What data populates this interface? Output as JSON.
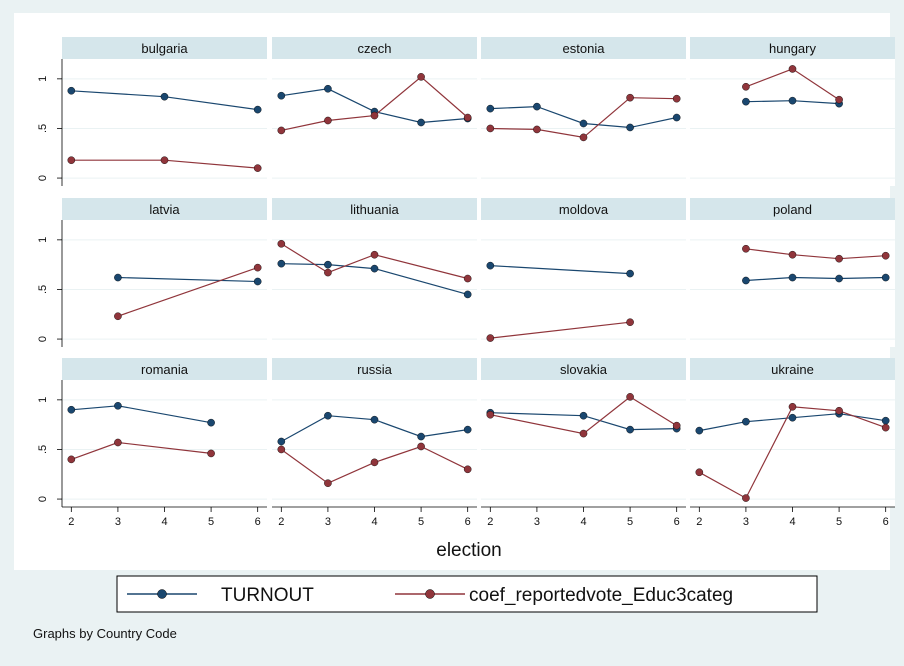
{
  "chart_data": {
    "type": "line",
    "xlabel": "election",
    "x_ticks": [
      2,
      3,
      4,
      5,
      6
    ],
    "y_ticks": [
      {
        "value": 0,
        "label": "0"
      },
      {
        "value": 0.5,
        "label": ".5"
      },
      {
        "value": 1,
        "label": "1"
      }
    ],
    "xlim": [
      1.8,
      6.2
    ],
    "ylim": [
      -0.08,
      1.2
    ],
    "grid": "horizontal",
    "legend_position": "bottom",
    "note": "Graphs by Country Code",
    "series_styles": [
      {
        "name": "TURNOUT",
        "color": "#1a476f"
      },
      {
        "name": "coef_reportedvote_Educ3categ",
        "color": "#90353b"
      }
    ],
    "panels": [
      {
        "title": "bulgaria",
        "series": [
          [
            [
              2,
              0.88
            ],
            [
              4,
              0.82
            ],
            [
              6,
              0.69
            ]
          ],
          [
            [
              2,
              0.18
            ],
            [
              4,
              0.18
            ],
            [
              6,
              0.1
            ]
          ]
        ]
      },
      {
        "title": "czech",
        "series": [
          [
            [
              2,
              0.83
            ],
            [
              3,
              0.9
            ],
            [
              4,
              0.67
            ],
            [
              5,
              0.56
            ],
            [
              6,
              0.6
            ]
          ],
          [
            [
              2,
              0.48
            ],
            [
              3,
              0.58
            ],
            [
              4,
              0.63
            ],
            [
              5,
              1.02
            ],
            [
              6,
              0.61
            ]
          ]
        ]
      },
      {
        "title": "estonia",
        "series": [
          [
            [
              2,
              0.7
            ],
            [
              3,
              0.72
            ],
            [
              4,
              0.55
            ],
            [
              5,
              0.51
            ],
            [
              6,
              0.61
            ]
          ],
          [
            [
              2,
              0.5
            ],
            [
              3,
              0.49
            ],
            [
              4,
              0.41
            ],
            [
              5,
              0.81
            ],
            [
              6,
              0.8
            ]
          ]
        ]
      },
      {
        "title": "hungary",
        "series": [
          [
            [
              3,
              0.77
            ],
            [
              4,
              0.78
            ],
            [
              5,
              0.75
            ]
          ],
          [
            [
              3,
              0.92
            ],
            [
              4,
              1.1
            ],
            [
              5,
              0.79
            ]
          ]
        ]
      },
      {
        "title": "latvia",
        "series": [
          [
            [
              3,
              0.62
            ],
            [
              6,
              0.58
            ]
          ],
          [
            [
              3,
              0.23
            ],
            [
              6,
              0.72
            ]
          ]
        ]
      },
      {
        "title": "lithuania",
        "series": [
          [
            [
              2,
              0.76
            ],
            [
              3,
              0.75
            ],
            [
              4,
              0.71
            ],
            [
              6,
              0.45
            ]
          ],
          [
            [
              2,
              0.96
            ],
            [
              3,
              0.67
            ],
            [
              4,
              0.85
            ],
            [
              6,
              0.61
            ]
          ]
        ]
      },
      {
        "title": "moldova",
        "series": [
          [
            [
              2,
              0.74
            ],
            [
              5,
              0.66
            ]
          ],
          [
            [
              2,
              0.01
            ],
            [
              5,
              0.17
            ]
          ]
        ]
      },
      {
        "title": "poland",
        "series": [
          [
            [
              3,
              0.59
            ],
            [
              4,
              0.62
            ],
            [
              5,
              0.61
            ],
            [
              6,
              0.62
            ]
          ],
          [
            [
              3,
              0.91
            ],
            [
              4,
              0.85
            ],
            [
              5,
              0.81
            ],
            [
              6,
              0.84
            ]
          ]
        ]
      },
      {
        "title": "romania",
        "series": [
          [
            [
              2,
              0.9
            ],
            [
              3,
              0.94
            ],
            [
              5,
              0.77
            ]
          ],
          [
            [
              2,
              0.4
            ],
            [
              3,
              0.57
            ],
            [
              5,
              0.46
            ]
          ]
        ]
      },
      {
        "title": "russia",
        "series": [
          [
            [
              2,
              0.58
            ],
            [
              3,
              0.84
            ],
            [
              4,
              0.8
            ],
            [
              5,
              0.63
            ],
            [
              6,
              0.7
            ]
          ],
          [
            [
              2,
              0.5
            ],
            [
              3,
              0.16
            ],
            [
              4,
              0.37
            ],
            [
              5,
              0.53
            ],
            [
              6,
              0.3
            ]
          ]
        ]
      },
      {
        "title": "slovakia",
        "series": [
          [
            [
              2,
              0.87
            ],
            [
              4,
              0.84
            ],
            [
              5,
              0.7
            ],
            [
              6,
              0.71
            ]
          ],
          [
            [
              2,
              0.85
            ],
            [
              4,
              0.66
            ],
            [
              5,
              1.03
            ],
            [
              6,
              0.74
            ]
          ]
        ]
      },
      {
        "title": "ukraine",
        "series": [
          [
            [
              2,
              0.69
            ],
            [
              3,
              0.78
            ],
            [
              4,
              0.82
            ],
            [
              5,
              0.86
            ],
            [
              6,
              0.79
            ]
          ],
          [
            [
              2,
              0.27
            ],
            [
              3,
              0.01
            ],
            [
              4,
              0.93
            ],
            [
              5,
              0.89
            ],
            [
              6,
              0.72
            ]
          ]
        ]
      }
    ]
  }
}
